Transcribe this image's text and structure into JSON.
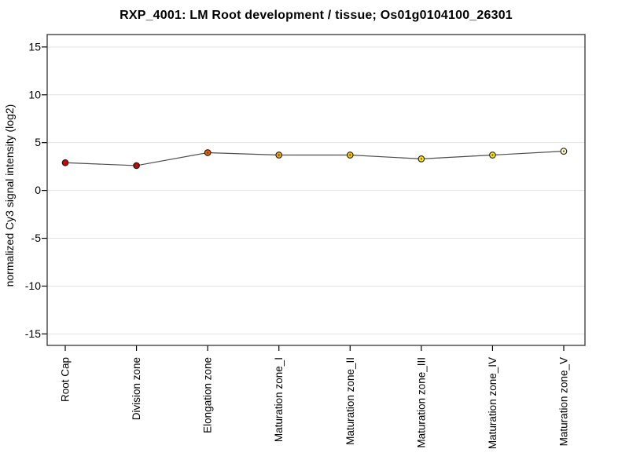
{
  "window": {
    "background": "#ffffff"
  },
  "chart_data": {
    "type": "line",
    "title": "RXP_4001: LM Root development / tissue; Os01g0104100_26301",
    "ylabel": "normalized Cy3 signal intensity (log2)",
    "xlabel": "",
    "categories": [
      "Root Cap",
      "Division zone",
      "Elongation zone",
      "Maturation zone_I",
      "Maturation zone_II",
      "Maturation zone_III",
      "Maturation zone_IV",
      "Maturation zone_V"
    ],
    "values": [
      2.9,
      2.6,
      3.95,
      3.7,
      3.7,
      3.3,
      3.7,
      4.1
    ],
    "point_colors": [
      "#D40000",
      "#C60000",
      "#EF6100",
      "#FFA200",
      "#FFC400",
      "#FFE300",
      "#FFE900",
      "#FFFFC2"
    ],
    "yticks": [
      15,
      10,
      5,
      0,
      -5,
      -10,
      -15
    ],
    "ylim": [
      -16.2,
      16.3
    ],
    "grid": true,
    "legend": "none",
    "line_color": "#4d4d4d",
    "grid_color": "#e2e2e2",
    "frame_color": "#333333",
    "marker_outline": "#1a1a1a",
    "marker_center_dot": "#4a4a4a"
  }
}
